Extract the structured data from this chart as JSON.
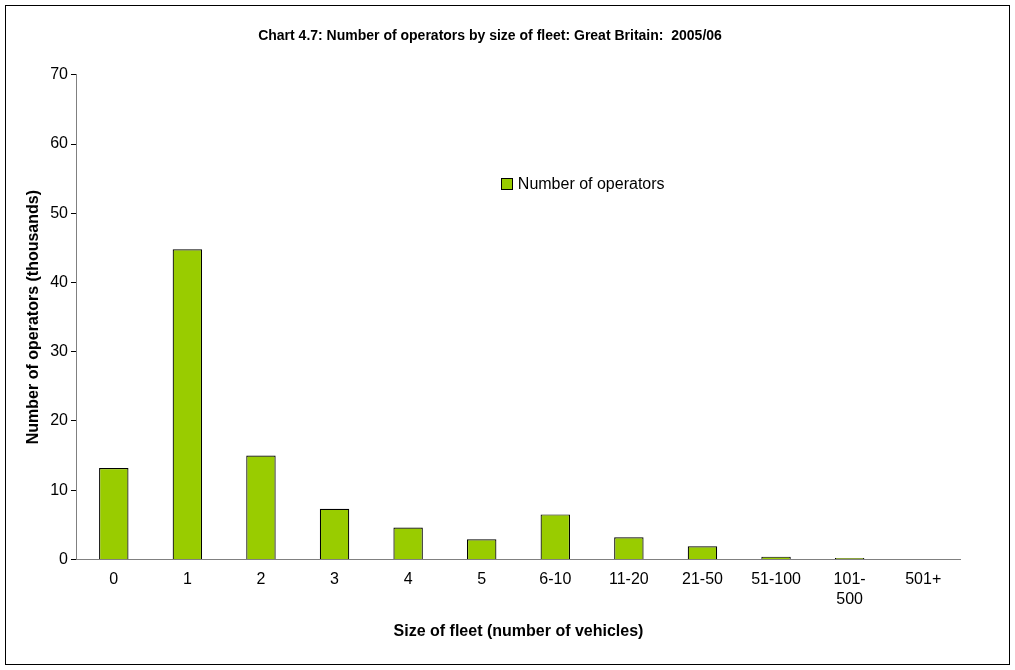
{
  "chart_data": {
    "type": "bar",
    "title": "Chart 4.7: Number of operators by size of fleet: Great Britain:  2005/06",
    "xlabel": "Size of fleet (number of vehicles)",
    "ylabel": "Number of operators (thousands)",
    "categories": [
      "0",
      "1",
      "2",
      "3",
      "4",
      "5",
      "6-10",
      "11-20",
      "21-50",
      "51-100",
      "101-\n500",
      "501+"
    ],
    "series": [
      {
        "name": "Number of operators",
        "color": "#99cc00",
        "values": [
          13.2,
          44.8,
          15.0,
          7.3,
          4.6,
          2.9,
          6.5,
          3.2,
          1.9,
          0.4,
          0.2,
          0
        ]
      }
    ],
    "ylim": [
      0,
      70
    ],
    "yticks": [
      0,
      10,
      20,
      30,
      40,
      50,
      60,
      70
    ],
    "grid": false,
    "legend": "top right"
  }
}
